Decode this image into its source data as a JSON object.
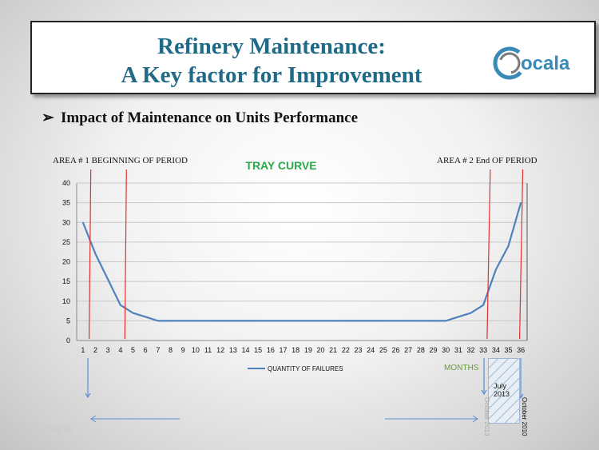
{
  "slide": {
    "title_line1": "Refinery Maintenance:",
    "title_line2": "A Key factor for Improvement",
    "logo_text": "ocala",
    "bullet": "Impact of Maintenance on Units Performance",
    "footer": "July 10"
  },
  "annotations": {
    "area1": "AREA # 1 BEGINNING OF PERIOD",
    "area2": "AREA # 2 End OF PERIOD",
    "months": "MONTHS",
    "july_2013_line1": "July",
    "july_2013_line2": "2013",
    "october_2013": "October 2013",
    "october_2010": "October 2010"
  },
  "colors": {
    "title": "#1f6b87",
    "chart_title": "#2aa84a",
    "series": "#4f81bd",
    "marker_lines": "#e03030",
    "arrows": "#5b8fd0"
  },
  "chart_data": {
    "type": "line",
    "title": "TRAY CURVE",
    "xlabel": "",
    "ylabel": "",
    "x": [
      1,
      2,
      3,
      4,
      5,
      6,
      7,
      8,
      9,
      10,
      11,
      12,
      13,
      14,
      15,
      16,
      17,
      18,
      19,
      20,
      21,
      22,
      23,
      24,
      25,
      26,
      27,
      28,
      29,
      30,
      31,
      32,
      33,
      34,
      35,
      36
    ],
    "series": [
      {
        "name": "QUANTITY OF FAILURES",
        "values": [
          30,
          22,
          15.5,
          9,
          7,
          6,
          5,
          5,
          5,
          5,
          5,
          5,
          5,
          5,
          5,
          5,
          5,
          5,
          5,
          5,
          5,
          5,
          5,
          5,
          5,
          5,
          5,
          5,
          5,
          5,
          6,
          7,
          9,
          18,
          24,
          35
        ]
      }
    ],
    "ylim": [
      0,
      40
    ],
    "yticks": [
      0,
      5,
      10,
      15,
      20,
      25,
      30,
      35,
      40
    ],
    "grid": true,
    "legend": "bottom",
    "vertical_markers_x": [
      1.5,
      4.35,
      33.3,
      35.9
    ]
  }
}
